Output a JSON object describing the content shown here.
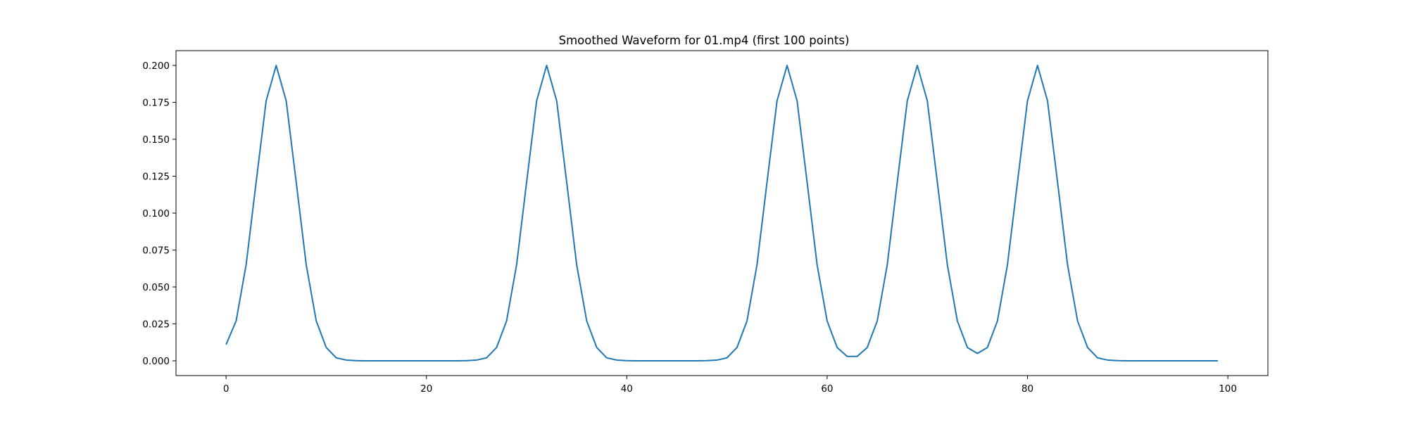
{
  "chart_data": {
    "type": "line",
    "title": "Smoothed Waveform for 01.mp4 (first 100 points)",
    "xlabel": "",
    "ylabel": "",
    "xlim": [
      -5,
      104
    ],
    "ylim": [
      -0.01,
      0.21
    ],
    "xticks": [
      0,
      20,
      40,
      60,
      80,
      100
    ],
    "xtick_labels": [
      "0",
      "20",
      "40",
      "60",
      "80",
      "100"
    ],
    "yticks": [
      0,
      0.025,
      0.05,
      0.075,
      0.1,
      0.125,
      0.15,
      0.175,
      0.2
    ],
    "ytick_labels": [
      "0.000",
      "0.025",
      "0.050",
      "0.075",
      "0.100",
      "0.125",
      "0.150",
      "0.175",
      "0.200"
    ],
    "grid": false,
    "legend": false,
    "series": [
      {
        "color": "#1f77b4",
        "x": [
          0,
          1,
          2,
          3,
          4,
          5,
          6,
          7,
          8,
          9,
          10,
          11,
          12,
          13,
          14,
          15,
          16,
          17,
          18,
          19,
          20,
          21,
          22,
          23,
          24,
          25,
          26,
          27,
          28,
          29,
          30,
          31,
          32,
          33,
          34,
          35,
          36,
          37,
          38,
          39,
          40,
          41,
          42,
          43,
          44,
          45,
          46,
          47,
          48,
          49,
          50,
          51,
          52,
          53,
          54,
          55,
          56,
          57,
          58,
          59,
          60,
          61,
          62,
          63,
          64,
          65,
          66,
          67,
          68,
          69,
          70,
          71,
          72,
          73,
          74,
          75,
          76,
          77,
          78,
          79,
          80,
          81,
          82,
          83,
          84,
          85,
          86,
          87,
          88,
          89,
          90,
          91,
          92,
          93,
          94,
          95,
          96,
          97,
          98,
          99
        ],
        "y": [
          0.011,
          0.027,
          0.065,
          0.121,
          0.176,
          0.2,
          0.176,
          0.121,
          0.065,
          0.027,
          0.009,
          0.002,
          0.0005,
          0.0001,
          0,
          0,
          0,
          0,
          0,
          0,
          0,
          0,
          0,
          0,
          0.0001,
          0.0005,
          0.002,
          0.009,
          0.027,
          0.065,
          0.121,
          0.176,
          0.2,
          0.176,
          0.121,
          0.065,
          0.027,
          0.009,
          0.002,
          0.0005,
          0.0001,
          0,
          0,
          0,
          0,
          0,
          0,
          0,
          0.0001,
          0.0005,
          0.002,
          0.009,
          0.027,
          0.065,
          0.121,
          0.176,
          0.2,
          0.176,
          0.121,
          0.065,
          0.027,
          0.009,
          0.003,
          0.003,
          0.009,
          0.027,
          0.065,
          0.121,
          0.176,
          0.2,
          0.176,
          0.121,
          0.065,
          0.027,
          0.009,
          0.005,
          0.009,
          0.027,
          0.065,
          0.121,
          0.176,
          0.2,
          0.176,
          0.121,
          0.065,
          0.027,
          0.009,
          0.002,
          0.0005,
          0.0001,
          0,
          0,
          0,
          0,
          0,
          0,
          0,
          0,
          0,
          0
        ]
      }
    ]
  }
}
